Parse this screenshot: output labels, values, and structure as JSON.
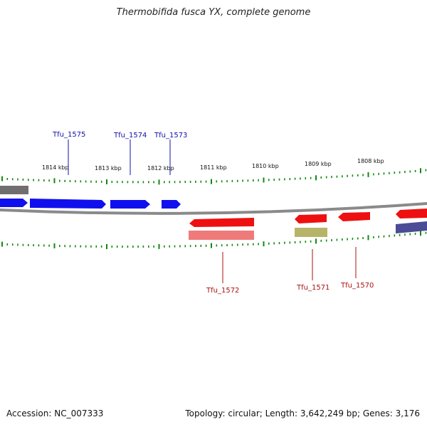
{
  "title": "Thermobifida fusca YX, complete genome",
  "footer": {
    "accession": "Accession: NC_007333",
    "summary": "Topology: circular; Length: 3,642,249 bp; Genes: 3,176"
  },
  "colors": {
    "forward_strand": "#1010ee",
    "reverse_strand": "#ee1010",
    "reverse_rna": "#ef7a7a",
    "olive_feature": "#b7b46a",
    "navy_feature": "#4a4c96",
    "gray_feature": "#6f6f6f",
    "backbone": "#8a8a8a",
    "ticks": "#118811",
    "forward_label": "#1111aa",
    "reverse_label": "#aa1111"
  },
  "axis": {
    "kbp_ticks": [
      "1814 kbp",
      "1813 kbp",
      "1812 kbp",
      "1811 kbp",
      "1810 kbp",
      "1809 kbp",
      "1808 kbp"
    ]
  },
  "gene_labels": {
    "forward": [
      "Tfu_1575",
      "Tfu_1574",
      "Tfu_1573"
    ],
    "reverse": [
      "Tfu_1572",
      "Tfu_1571",
      "Tfu_1570"
    ]
  }
}
